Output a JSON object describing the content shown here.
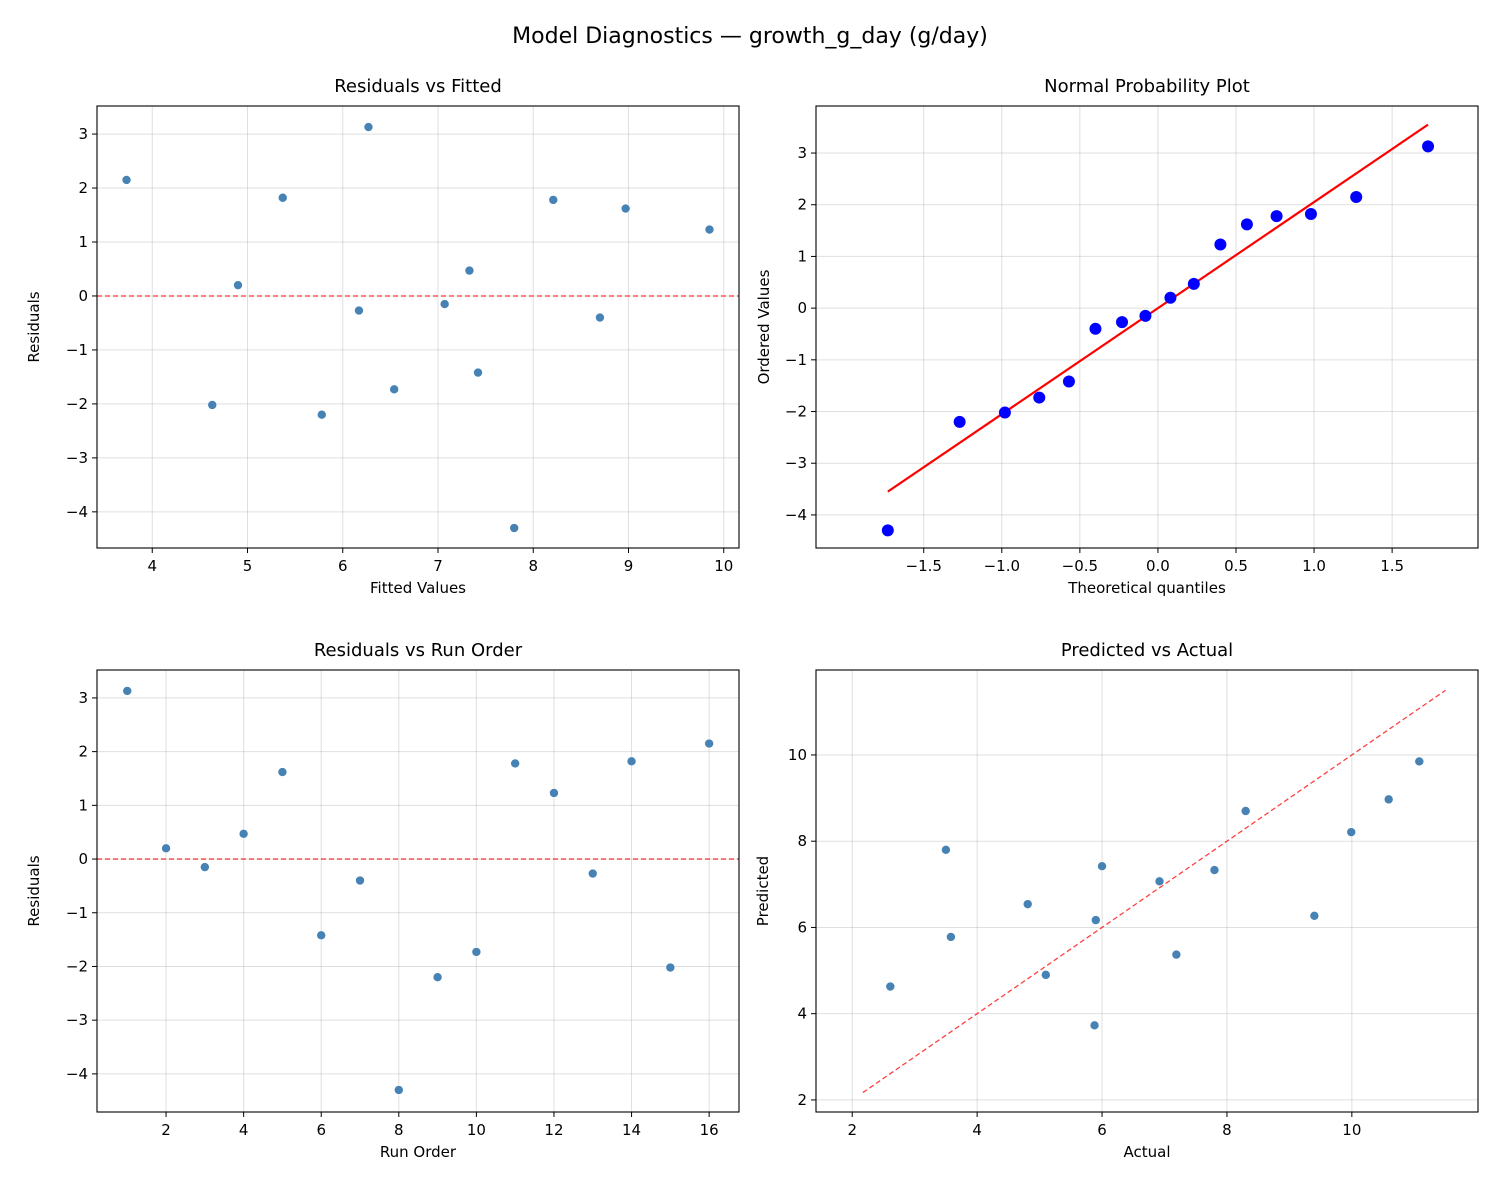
{
  "suptitle": "Model Diagnostics — growth_g_day (g/day)",
  "chart_data": [
    {
      "type": "scatter",
      "title": "Residuals vs Fitted",
      "xlabel": "Fitted Values",
      "ylabel": "Residuals",
      "xlim": [
        3.42,
        10.16
      ],
      "ylim": [
        -4.67,
        3.52
      ],
      "xticks": [
        4,
        5,
        6,
        7,
        8,
        9,
        10
      ],
      "yticks": [
        -4,
        -3,
        -2,
        -1,
        0,
        1,
        2,
        3
      ],
      "grid": true,
      "point_color": "#4682b4",
      "x": [
        6.27,
        4.9,
        7.07,
        7.33,
        8.97,
        7.42,
        8.7,
        7.8,
        5.78,
        6.54,
        8.21,
        9.85,
        6.17,
        5.37,
        4.63,
        3.73
      ],
      "y": [
        3.13,
        0.2,
        -0.15,
        0.47,
        1.62,
        -1.42,
        -0.4,
        -4.3,
        -2.2,
        -1.73,
        1.78,
        1.23,
        -0.27,
        1.82,
        -2.02,
        2.15
      ],
      "reference_line": {
        "type": "hline",
        "y": 0,
        "style": "dashed",
        "color": "#ff0000"
      }
    },
    {
      "type": "scatter",
      "title": "Normal Probability Plot",
      "xlabel": "Theoretical quantiles",
      "ylabel": "Ordered Values",
      "xlim": [
        -2.19,
        2.05
      ],
      "ylim": [
        -4.64,
        3.91
      ],
      "xticks": [
        -1.5,
        -1.0,
        -0.5,
        0.0,
        0.5,
        1.0,
        1.5
      ],
      "yticks": [
        -4,
        -3,
        -2,
        -1,
        0,
        1,
        2,
        3
      ],
      "grid": true,
      "point_color": "#0000ff",
      "x": [
        -1.73,
        -1.27,
        -0.98,
        -0.76,
        -0.57,
        -0.4,
        -0.23,
        -0.08,
        0.08,
        0.23,
        0.4,
        0.57,
        0.76,
        0.98,
        1.27,
        1.73
      ],
      "y": [
        -4.3,
        -2.2,
        -2.02,
        -1.73,
        -1.42,
        -0.4,
        -0.27,
        -0.15,
        0.2,
        0.47,
        1.23,
        1.62,
        1.78,
        1.82,
        2.15,
        3.13
      ],
      "reference_line": {
        "type": "segment",
        "x": [
          -1.73,
          1.73
        ],
        "y": [
          -3.55,
          3.55
        ],
        "style": "solid",
        "color": "#ff0000"
      }
    },
    {
      "type": "scatter",
      "title": "Residuals vs Run Order",
      "xlabel": "Run Order",
      "ylabel": "Residuals",
      "xlim": [
        0.22,
        16.77
      ],
      "ylim": [
        -4.71,
        3.52
      ],
      "xticks": [
        2,
        4,
        6,
        8,
        10,
        12,
        14,
        16
      ],
      "yticks": [
        -4,
        -3,
        -2,
        -1,
        0,
        1,
        2,
        3
      ],
      "grid": true,
      "point_color": "#4682b4",
      "x": [
        1,
        2,
        3,
        4,
        5,
        6,
        7,
        8,
        9,
        10,
        11,
        12,
        13,
        14,
        15,
        16
      ],
      "y": [
        3.13,
        0.2,
        -0.15,
        0.47,
        1.62,
        -1.42,
        -0.4,
        -4.3,
        -2.2,
        -1.73,
        1.78,
        1.23,
        -0.27,
        1.82,
        -2.02,
        2.15
      ],
      "reference_line": {
        "type": "hline",
        "y": 0,
        "style": "dashed",
        "color": "#ff0000"
      }
    },
    {
      "type": "scatter",
      "title": "Predicted vs Actual",
      "xlabel": "Actual",
      "ylabel": "Predicted",
      "xlim": [
        1.42,
        12.02
      ],
      "ylim": [
        1.72,
        11.97
      ],
      "xticks": [
        2,
        4,
        6,
        8,
        10
      ],
      "yticks": [
        2,
        4,
        6,
        8,
        10
      ],
      "grid": true,
      "point_color": "#4682b4",
      "x": [
        9.4,
        5.1,
        6.92,
        7.8,
        10.59,
        6.0,
        8.3,
        3.5,
        3.58,
        4.81,
        9.99,
        11.08,
        5.9,
        7.19,
        2.61,
        5.88
      ],
      "y": [
        6.27,
        4.9,
        7.07,
        7.33,
        8.97,
        7.42,
        8.7,
        7.8,
        5.78,
        6.54,
        8.21,
        9.85,
        6.17,
        5.37,
        4.63,
        3.73
      ],
      "reference_line": {
        "type": "segment",
        "x": [
          2.17,
          11.5
        ],
        "y": [
          2.17,
          11.5
        ],
        "style": "dashed",
        "color": "#ff0000"
      }
    }
  ]
}
